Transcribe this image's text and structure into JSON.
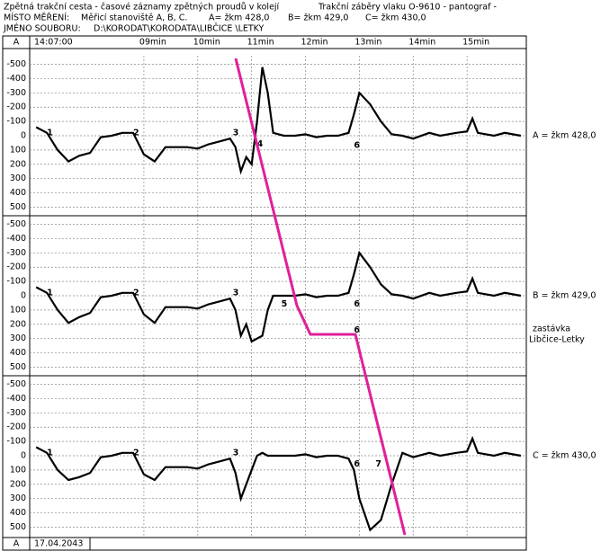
{
  "header": {
    "line1_left": "Zpětná trakční cesta - časové záznamy zpětných proudů v kolejí",
    "line1_right": "Trakční záběry vlaku O-9610 - pantograf -",
    "place_label": "MÍSTO MĚŘENÍ:",
    "place": "Měřicí stanoviště A, B, C.",
    "place_a": "A= žkm 428,0",
    "place_b": "B= žkm 429,0",
    "place_c": "C= žkm 430,0",
    "file_label": "JMÉNO SOUBORU:",
    "file": "D:\\KORODAT\\KORODATA\\LIBČICE \\LETKY"
  },
  "time_axis": {
    "channel": "A",
    "start": "14:07:00",
    "xlim": [
      6.88,
      16.1
    ],
    "xticks": [
      {
        "value": 9,
        "label": "09min"
      },
      {
        "value": 10,
        "label": "10min"
      },
      {
        "value": 11,
        "label": "11min"
      },
      {
        "value": 12,
        "label": "12min"
      },
      {
        "value": 13,
        "label": "13min"
      },
      {
        "value": 14,
        "label": "14min"
      },
      {
        "value": 15,
        "label": "15min"
      }
    ]
  },
  "footer": {
    "channel": "A",
    "date": "17.04.2043"
  },
  "stop_label": [
    "zastávka",
    "Libčice-Letky"
  ],
  "chart_data": [
    {
      "type": "line",
      "label": "A = žkm 428,0",
      "color": "#000000",
      "ylim": [
        -560,
        560
      ],
      "inverted": true,
      "grid": true,
      "yticks": [
        -500,
        -400,
        -300,
        -200,
        -100,
        0,
        100,
        200,
        300,
        400,
        500
      ],
      "x": [
        7.0,
        7.2,
        7.4,
        7.6,
        7.8,
        8.0,
        8.2,
        8.4,
        8.6,
        8.8,
        9.0,
        9.2,
        9.4,
        9.6,
        9.8,
        10.0,
        10.2,
        10.4,
        10.6,
        10.7,
        10.8,
        10.9,
        11.0,
        11.1,
        11.2,
        11.3,
        11.4,
        11.6,
        11.8,
        12.0,
        12.2,
        12.4,
        12.6,
        12.8,
        12.9,
        13.0,
        13.2,
        13.4,
        13.6,
        13.8,
        14.0,
        14.3,
        14.5,
        14.8,
        15.0,
        15.1,
        15.2,
        15.5,
        15.7,
        16.0
      ],
      "values": [
        -60,
        -20,
        100,
        180,
        140,
        120,
        10,
        0,
        -20,
        -20,
        130,
        180,
        80,
        80,
        80,
        90,
        60,
        40,
        20,
        80,
        250,
        150,
        200,
        -100,
        -480,
        -300,
        -20,
        0,
        0,
        -10,
        10,
        0,
        0,
        -20,
        -150,
        -300,
        -220,
        -100,
        -10,
        0,
        20,
        -20,
        0,
        -20,
        -30,
        -120,
        -20,
        0,
        -20,
        0
      ],
      "markers": [
        "1",
        "2",
        "3",
        "4",
        "6"
      ]
    },
    {
      "type": "line",
      "label": "B = žkm 429,0",
      "color": "#000000",
      "ylim": [
        -560,
        560
      ],
      "inverted": true,
      "grid": true,
      "yticks": [
        -500,
        -400,
        -300,
        -200,
        -100,
        0,
        100,
        200,
        300,
        400,
        500
      ],
      "x": [
        7.0,
        7.2,
        7.4,
        7.6,
        7.8,
        8.0,
        8.2,
        8.4,
        8.6,
        8.8,
        9.0,
        9.2,
        9.4,
        9.6,
        9.8,
        10.0,
        10.2,
        10.4,
        10.6,
        10.7,
        10.8,
        10.9,
        11.0,
        11.1,
        11.2,
        11.3,
        11.4,
        11.6,
        11.8,
        12.0,
        12.2,
        12.4,
        12.6,
        12.8,
        12.9,
        13.0,
        13.2,
        13.4,
        13.6,
        13.8,
        14.0,
        14.3,
        14.5,
        14.8,
        15.0,
        15.1,
        15.2,
        15.5,
        15.7,
        16.0
      ],
      "values": [
        -60,
        -20,
        100,
        190,
        150,
        120,
        10,
        0,
        -20,
        -20,
        130,
        190,
        80,
        80,
        80,
        90,
        60,
        40,
        20,
        100,
        280,
        200,
        320,
        300,
        280,
        100,
        0,
        0,
        0,
        -10,
        10,
        0,
        0,
        -20,
        -150,
        -300,
        -200,
        -80,
        -10,
        0,
        20,
        -20,
        0,
        -20,
        -30,
        -120,
        -20,
        0,
        -20,
        0
      ],
      "markers": [
        "1",
        "2",
        "3",
        "5",
        "6",
        "6"
      ]
    },
    {
      "type": "line",
      "label": "C = žkm 430,0",
      "color": "#000000",
      "ylim": [
        -560,
        560
      ],
      "inverted": true,
      "grid": true,
      "yticks": [
        -500,
        -400,
        -300,
        -200,
        -100,
        0,
        100,
        200,
        300,
        400,
        500
      ],
      "x": [
        7.0,
        7.2,
        7.4,
        7.6,
        7.8,
        8.0,
        8.2,
        8.4,
        8.6,
        8.8,
        9.0,
        9.2,
        9.4,
        9.6,
        9.8,
        10.0,
        10.2,
        10.4,
        10.6,
        10.7,
        10.8,
        10.9,
        11.0,
        11.1,
        11.2,
        11.3,
        11.4,
        11.6,
        11.8,
        12.0,
        12.2,
        12.4,
        12.6,
        12.8,
        12.9,
        13.0,
        13.2,
        13.4,
        13.6,
        13.8,
        14.0,
        14.3,
        14.5,
        14.8,
        15.0,
        15.1,
        15.2,
        15.5,
        15.7,
        16.0
      ],
      "values": [
        -60,
        -20,
        100,
        170,
        150,
        120,
        10,
        0,
        -20,
        -20,
        130,
        170,
        80,
        80,
        80,
        90,
        60,
        40,
        20,
        120,
        300,
        200,
        100,
        0,
        -20,
        0,
        0,
        0,
        0,
        -10,
        10,
        0,
        0,
        20,
        100,
        300,
        520,
        450,
        200,
        -20,
        10,
        -20,
        0,
        -20,
        -30,
        -120,
        -20,
        0,
        -20,
        0
      ],
      "markers": [
        "1",
        "2",
        "3",
        "6",
        "7"
      ]
    }
  ]
}
